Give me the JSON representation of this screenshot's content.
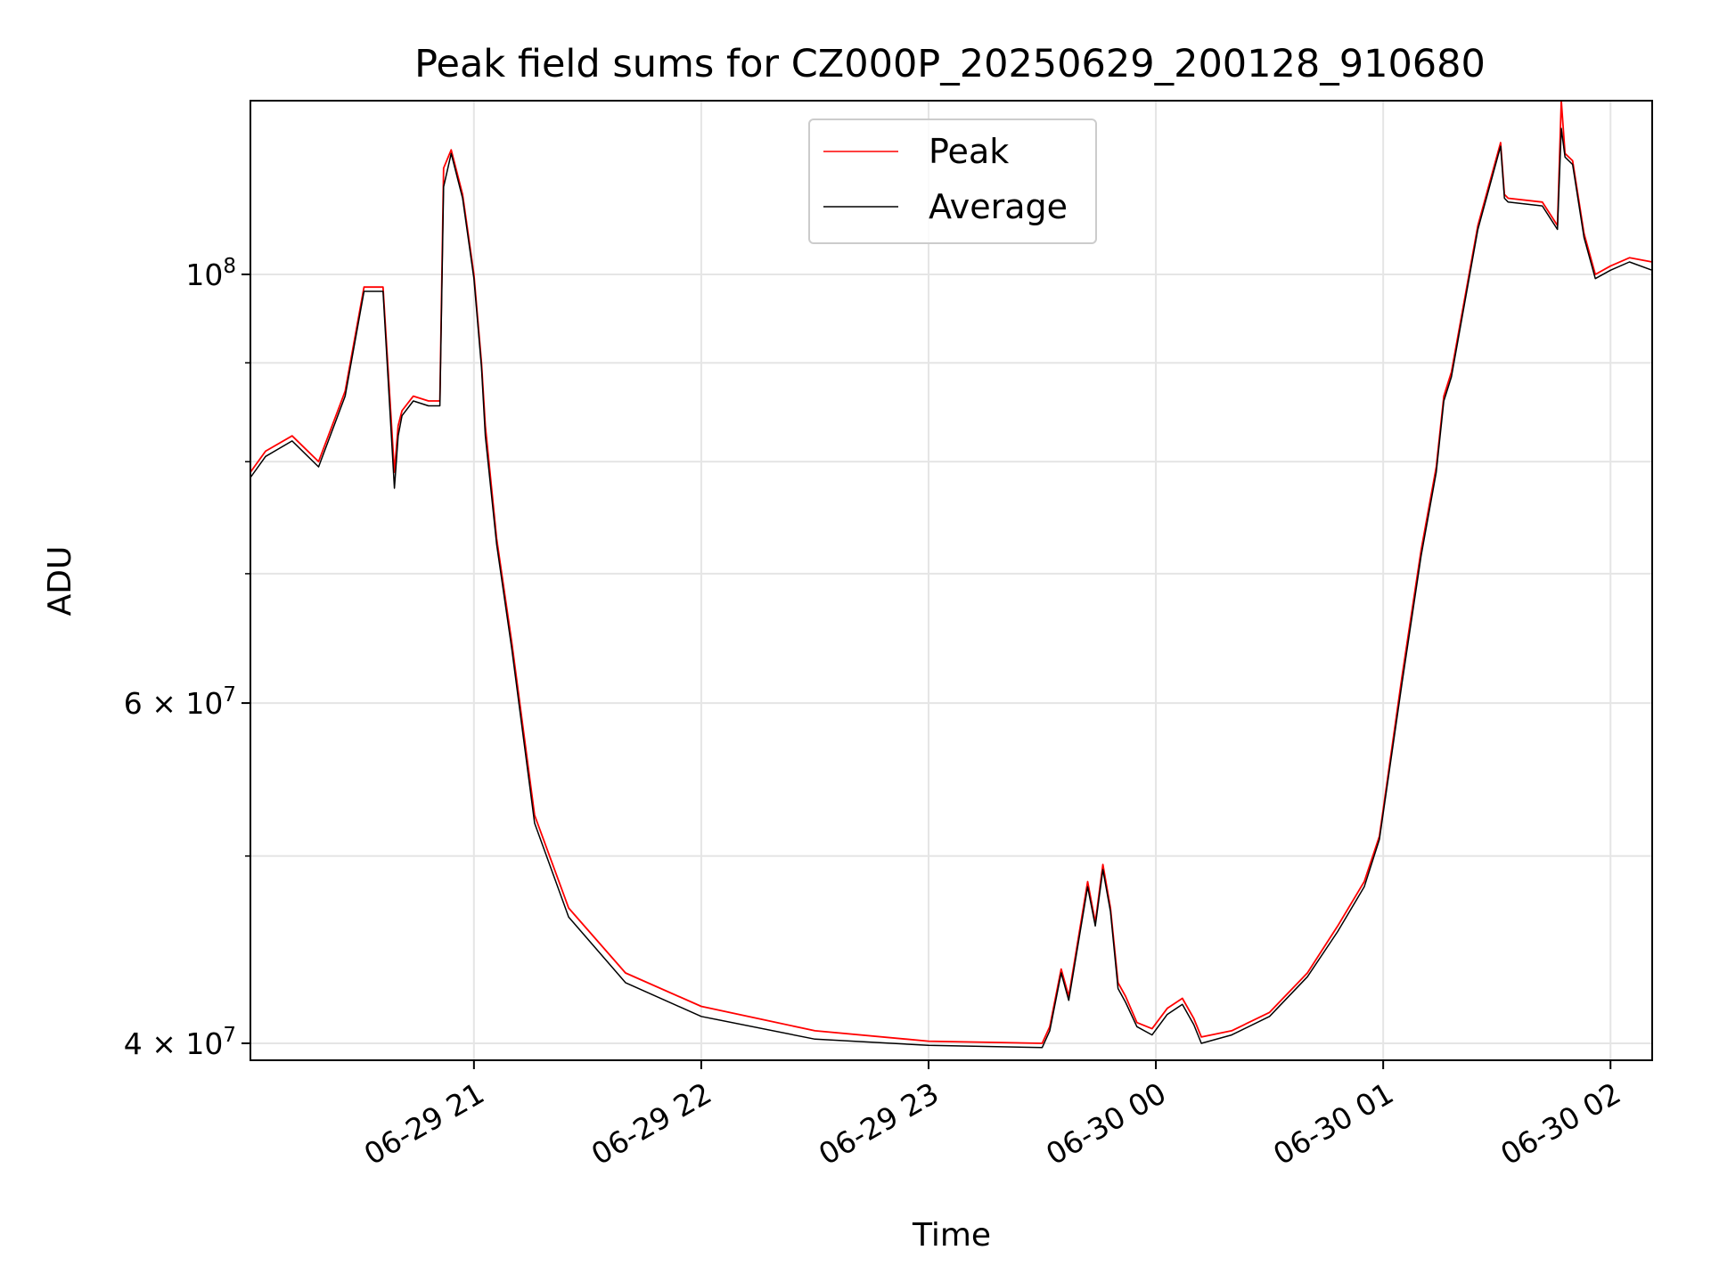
{
  "chart_data": {
    "type": "line",
    "title": "Peak field sums for CZ000P_20250629_200128_910680",
    "xlabel": "Time",
    "ylabel": "ADU",
    "yscale": "log",
    "xlim": [
      "2025-06-29 20:01",
      "2025-06-30 02:11"
    ],
    "ylim": [
      39200000,
      123000000
    ],
    "grid": true,
    "legend_position": "top-center",
    "x_ticks": [
      {
        "value": "2025-06-29 21:00",
        "label": "06-29 21"
      },
      {
        "value": "2025-06-29 22:00",
        "label": "06-29 22"
      },
      {
        "value": "2025-06-29 23:00",
        "label": "06-29 23"
      },
      {
        "value": "2025-06-30 00:00",
        "label": "06-30 00"
      },
      {
        "value": "2025-06-30 01:00",
        "label": "06-30 01"
      },
      {
        "value": "2025-06-30 02:00",
        "label": "06-30 02"
      }
    ],
    "y_ticks": [
      {
        "value": 40000000,
        "label": "4 × 10^7",
        "mant": "4",
        "exp": "7"
      },
      {
        "value": 60000000,
        "label": "6 × 10^7",
        "mant": "6",
        "exp": "7"
      },
      {
        "value": 100000000,
        "label": "10^8",
        "mant": "",
        "exp": "8"
      }
    ],
    "y_minor_ticks": [
      50000000,
      70000000,
      80000000,
      90000000
    ],
    "series": [
      {
        "name": "Peak",
        "color": "#ff0000",
        "x": [
          "2025-06-29 20:01",
          "2025-06-29 20:05",
          "2025-06-29 20:12",
          "2025-06-29 20:19",
          "2025-06-29 20:26",
          "2025-06-29 20:31",
          "2025-06-29 20:36",
          "2025-06-29 20:39",
          "2025-06-29 20:40",
          "2025-06-29 20:41",
          "2025-06-29 20:44",
          "2025-06-29 20:48",
          "2025-06-29 20:51",
          "2025-06-29 20:52",
          "2025-06-29 20:54",
          "2025-06-29 20:57",
          "2025-06-29 21:00",
          "2025-06-29 21:02",
          "2025-06-29 21:03",
          "2025-06-29 21:06",
          "2025-06-29 21:10",
          "2025-06-29 21:16",
          "2025-06-29 21:25",
          "2025-06-29 21:40",
          "2025-06-29 22:00",
          "2025-06-29 22:30",
          "2025-06-29 23:00",
          "2025-06-29 23:30",
          "2025-06-29 23:32",
          "2025-06-29 23:35",
          "2025-06-29 23:37",
          "2025-06-29 23:42",
          "2025-06-29 23:44",
          "2025-06-29 23:46",
          "2025-06-29 23:48",
          "2025-06-29 23:50",
          "2025-06-29 23:52",
          "2025-06-29 23:55",
          "2025-06-29 23:59",
          "2025-06-30 00:03",
          "2025-06-30 00:07",
          "2025-06-30 00:10",
          "2025-06-30 00:12",
          "2025-06-30 00:20",
          "2025-06-30 00:30",
          "2025-06-30 00:40",
          "2025-06-30 00:48",
          "2025-06-30 00:55",
          "2025-06-30 00:59",
          "2025-06-30 01:05",
          "2025-06-30 01:10",
          "2025-06-30 01:14",
          "2025-06-30 01:16",
          "2025-06-30 01:18",
          "2025-06-30 01:25",
          "2025-06-30 01:31",
          "2025-06-30 01:32",
          "2025-06-30 01:33",
          "2025-06-30 01:42",
          "2025-06-30 01:46",
          "2025-06-30 01:47",
          "2025-06-30 01:48",
          "2025-06-30 01:50",
          "2025-06-30 01:53",
          "2025-06-30 01:56",
          "2025-06-30 02:00",
          "2025-06-30 02:05",
          "2025-06-30 02:11"
        ],
        "y": [
          79000000,
          81000000,
          82500000,
          80000000,
          87000000,
          98500000,
          98500000,
          79000000,
          83500000,
          85000000,
          86500000,
          86000000,
          86000000,
          113500000,
          116000000,
          110000000,
          100000000,
          90000000,
          83500000,
          73000000,
          64500000,
          52500000,
          47000000,
          43500000,
          41800000,
          40600000,
          40100000,
          40000000,
          40800000,
          43700000,
          42300000,
          48500000,
          46200000,
          49500000,
          47000000,
          43000000,
          42300000,
          41000000,
          40700000,
          41700000,
          42200000,
          41200000,
          40300000,
          40600000,
          41500000,
          43500000,
          46000000,
          48500000,
          51200000,
          62000000,
          72000000,
          79500000,
          86500000,
          89000000,
          106000000,
          117000000,
          110000000,
          109500000,
          109000000,
          106000000,
          123000000,
          115500000,
          114500000,
          105000000,
          100000000,
          101000000,
          102000000,
          101500000
        ]
      },
      {
        "name": "Average",
        "color": "#000000",
        "x": [
          "2025-06-29 20:01",
          "2025-06-29 20:05",
          "2025-06-29 20:12",
          "2025-06-29 20:19",
          "2025-06-29 20:26",
          "2025-06-29 20:31",
          "2025-06-29 20:36",
          "2025-06-29 20:39",
          "2025-06-29 20:40",
          "2025-06-29 20:41",
          "2025-06-29 20:44",
          "2025-06-29 20:48",
          "2025-06-29 20:51",
          "2025-06-29 20:52",
          "2025-06-29 20:54",
          "2025-06-29 20:57",
          "2025-06-29 21:00",
          "2025-06-29 21:02",
          "2025-06-29 21:03",
          "2025-06-29 21:06",
          "2025-06-29 21:10",
          "2025-06-29 21:16",
          "2025-06-29 21:25",
          "2025-06-29 21:40",
          "2025-06-29 22:00",
          "2025-06-29 22:30",
          "2025-06-29 23:00",
          "2025-06-29 23:30",
          "2025-06-29 23:32",
          "2025-06-29 23:35",
          "2025-06-29 23:37",
          "2025-06-29 23:42",
          "2025-06-29 23:44",
          "2025-06-29 23:46",
          "2025-06-29 23:48",
          "2025-06-29 23:50",
          "2025-06-29 23:52",
          "2025-06-29 23:55",
          "2025-06-29 23:59",
          "2025-06-30 00:03",
          "2025-06-30 00:07",
          "2025-06-30 00:10",
          "2025-06-30 00:12",
          "2025-06-30 00:20",
          "2025-06-30 00:30",
          "2025-06-30 00:40",
          "2025-06-30 00:48",
          "2025-06-30 00:55",
          "2025-06-30 00:59",
          "2025-06-30 01:05",
          "2025-06-30 01:10",
          "2025-06-30 01:14",
          "2025-06-30 01:16",
          "2025-06-30 01:18",
          "2025-06-30 01:25",
          "2025-06-30 01:31",
          "2025-06-30 01:32",
          "2025-06-30 01:33",
          "2025-06-30 01:42",
          "2025-06-30 01:46",
          "2025-06-30 01:47",
          "2025-06-30 01:48",
          "2025-06-30 01:50",
          "2025-06-30 01:53",
          "2025-06-30 01:56",
          "2025-06-30 02:00",
          "2025-06-30 02:05",
          "2025-06-30 02:11"
        ],
        "y": [
          78500000,
          80500000,
          82000000,
          79500000,
          86500000,
          98000000,
          98000000,
          77500000,
          82500000,
          84500000,
          86000000,
          85500000,
          85500000,
          111000000,
          115500000,
          109500000,
          99500000,
          89500000,
          82500000,
          72500000,
          64000000,
          52000000,
          46500000,
          43000000,
          41300000,
          40200000,
          39900000,
          39800000,
          40600000,
          43500000,
          42100000,
          48200000,
          46000000,
          49200000,
          46800000,
          42700000,
          42000000,
          40800000,
          40400000,
          41400000,
          41900000,
          40900000,
          40000000,
          40400000,
          41300000,
          43300000,
          45700000,
          48200000,
          51000000,
          61500000,
          71500000,
          79000000,
          86000000,
          88500000,
          105500000,
          116500000,
          109500000,
          109000000,
          108500000,
          105500000,
          119000000,
          115000000,
          114000000,
          104500000,
          99500000,
          100500000,
          101500000,
          100500000
        ]
      }
    ]
  }
}
